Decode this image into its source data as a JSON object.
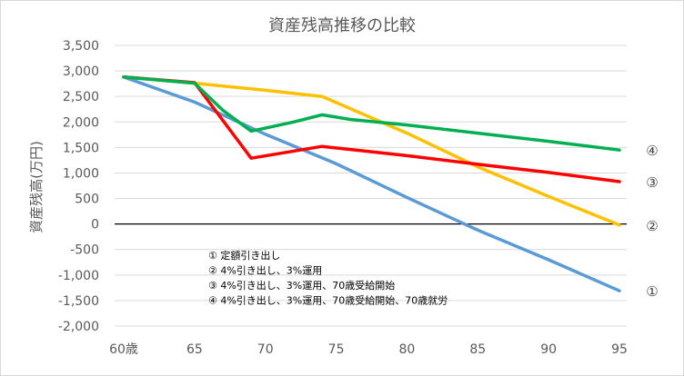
{
  "chart_data": {
    "type": "line",
    "title": "資産残高推移の比較",
    "xlabel": "",
    "ylabel": "資産残高(万円)",
    "xlim": [
      60,
      95
    ],
    "ylim": [
      -2000,
      3500
    ],
    "x_ticks": [
      60,
      65,
      70,
      75,
      80,
      85,
      90,
      95
    ],
    "x_tick_labels": [
      "60歳",
      "65",
      "70",
      "75",
      "80",
      "85",
      "90",
      "95"
    ],
    "y_ticks": [
      3500,
      3000,
      2500,
      2000,
      1500,
      1000,
      500,
      0,
      -500,
      -1000,
      -1500,
      -2000
    ],
    "y_tick_labels": [
      "3,500",
      "3,000",
      "2,500",
      "2,000",
      "1,500",
      "1,000",
      "500",
      "0",
      "-500",
      "-1,000",
      "-1,500",
      "-2,000"
    ],
    "grid": "horizontal",
    "zero_line": true,
    "series": [
      {
        "name": "① 定額引き出し",
        "end_label": "①",
        "color": "#5b9bd5",
        "points": [
          [
            60,
            2880
          ],
          [
            65,
            2390
          ],
          [
            70,
            1760
          ],
          [
            75,
            1180
          ],
          [
            80,
            520
          ],
          [
            85,
            -120
          ],
          [
            90,
            -700
          ],
          [
            95,
            -1310
          ]
        ]
      },
      {
        "name": "② 4%引き出し、3%運用",
        "end_label": "②",
        "color": "#ffc000",
        "points": [
          [
            60,
            2880
          ],
          [
            65,
            2760
          ],
          [
            70,
            2620
          ],
          [
            74,
            2500
          ],
          [
            75,
            2380
          ],
          [
            80,
            1780
          ],
          [
            85,
            1120
          ],
          [
            90,
            540
          ],
          [
            95,
            -20
          ]
        ]
      },
      {
        "name": "③ 4%引き出し、3%運用、70歳受給開始",
        "end_label": "③",
        "color": "#ff0000",
        "points": [
          [
            60,
            2880
          ],
          [
            65,
            2770
          ],
          [
            69,
            1290
          ],
          [
            74,
            1520
          ],
          [
            80,
            1340
          ],
          [
            85,
            1170
          ],
          [
            90,
            1010
          ],
          [
            95,
            830
          ]
        ]
      },
      {
        "name": "④ 4%引き出し、3%運用、70歳受給開始、70歳就労",
        "end_label": "④",
        "color": "#00b050",
        "points": [
          [
            60,
            2880
          ],
          [
            65,
            2760
          ],
          [
            67,
            2230
          ],
          [
            69,
            1820
          ],
          [
            72,
            2000
          ],
          [
            74,
            2140
          ],
          [
            76,
            2050
          ],
          [
            80,
            1940
          ],
          [
            85,
            1780
          ],
          [
            90,
            1620
          ],
          [
            95,
            1450
          ]
        ]
      }
    ],
    "legend_lines": [
      "① 定額引き出し",
      "② 4%引き出し、3%運用",
      "③ 4%引き出し、3%運用、70歳受給開始",
      "④ 4%引き出し、3%運用、70歳受給開始、70歳就労"
    ],
    "legend_placement": "inside-lower-left"
  }
}
